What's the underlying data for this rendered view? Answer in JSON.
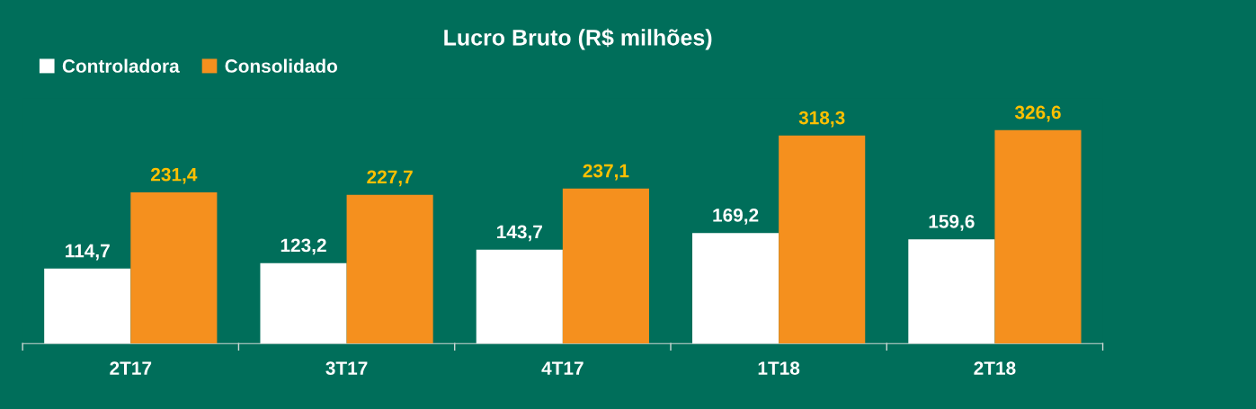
{
  "chart_data": {
    "type": "bar",
    "title": "Lucro Bruto (R$ milhões)",
    "categories": [
      "2T17",
      "3T17",
      "4T17",
      "1T18",
      "2T18"
    ],
    "series": [
      {
        "name": "Controladora",
        "color": "#ffffff",
        "values": [
          114.7,
          123.2,
          143.7,
          169.2,
          159.6
        ],
        "value_labels": [
          "114,7",
          "123,2",
          "143,7",
          "169,2",
          "159,6"
        ]
      },
      {
        "name": "Consolidado",
        "color": "#f5901e",
        "values": [
          231.4,
          227.7,
          237.1,
          318.3,
          326.6
        ],
        "value_labels": [
          "231,4",
          "227,7",
          "237,1",
          "318,3",
          "326,6"
        ]
      }
    ],
    "legend": "top left",
    "grid": false
  }
}
